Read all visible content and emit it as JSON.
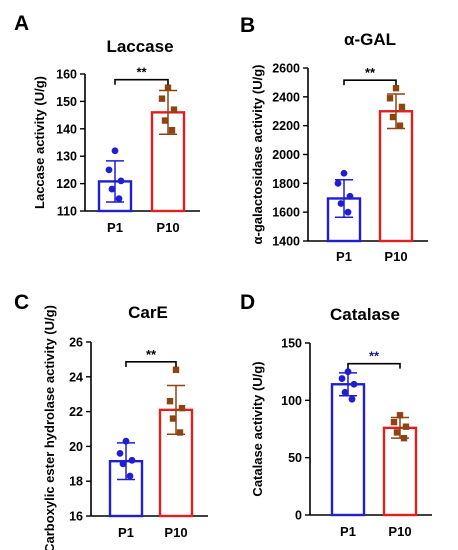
{
  "colors": {
    "p1": "#1f1fd0",
    "p10": "#8b4513",
    "p10_outline": "#e02020",
    "sig_catalase": "#1a1a8c",
    "text": "#000000"
  },
  "chart_data": [
    {
      "panel": "A",
      "title": "Laccase",
      "type": "bar",
      "ylabel": "Laccase activity (U/g)",
      "ylim": [
        110,
        160
      ],
      "ticks": [
        110,
        120,
        130,
        140,
        150,
        160
      ],
      "categories": [
        "P1",
        "P10"
      ],
      "values": [
        120.8,
        146.0
      ],
      "errors": [
        7.5,
        8.0
      ],
      "points": [
        [
          132.0,
          125.0,
          121.0,
          118.0,
          114.5
        ],
        [
          155.0,
          151.0,
          147.0,
          143.0,
          139.5
        ]
      ],
      "significance": "**",
      "grid": false
    },
    {
      "panel": "B",
      "title": "α-GAL",
      "type": "bar",
      "ylabel": "α-galactosidase activity (U/g)",
      "ylim": [
        1400,
        2600
      ],
      "ticks": [
        1400,
        1600,
        1800,
        2000,
        2200,
        2400,
        2600
      ],
      "categories": [
        "P1",
        "P10"
      ],
      "values": [
        1695,
        2300
      ],
      "errors": [
        130,
        120
      ],
      "points": [
        [
          1870,
          1800,
          1710,
          1660,
          1600
        ],
        [
          2460,
          2390,
          2330,
          2260,
          2200
        ]
      ],
      "significance": "**",
      "grid": false
    },
    {
      "panel": "C",
      "title": "CarE",
      "type": "bar",
      "ylabel": "Carboxylic ester hydrolase activity (U/g)",
      "ylim": [
        16,
        26
      ],
      "ticks": [
        16,
        18,
        20,
        22,
        24,
        26
      ],
      "categories": [
        "P1",
        "P10"
      ],
      "values": [
        19.15,
        22.1
      ],
      "errors": [
        1.05,
        1.4
      ],
      "points": [
        [
          20.3,
          19.6,
          19.2,
          19.0,
          18.3
        ],
        [
          24.4,
          22.6,
          22.2,
          21.6,
          20.8
        ]
      ],
      "significance": "**",
      "grid": false
    },
    {
      "panel": "D",
      "title": "Catalase",
      "type": "bar",
      "ylabel": "Catalase activity (U/g)",
      "ylim": [
        0,
        150
      ],
      "ticks": [
        0,
        50,
        100,
        150
      ],
      "categories": [
        "P1",
        "P10"
      ],
      "values": [
        114,
        76
      ],
      "errors": [
        10,
        9
      ],
      "points": [
        [
          125,
          119,
          114,
          107,
          101
        ],
        [
          87,
          81,
          77,
          72,
          67
        ]
      ],
      "significance": "**",
      "grid": false
    }
  ]
}
